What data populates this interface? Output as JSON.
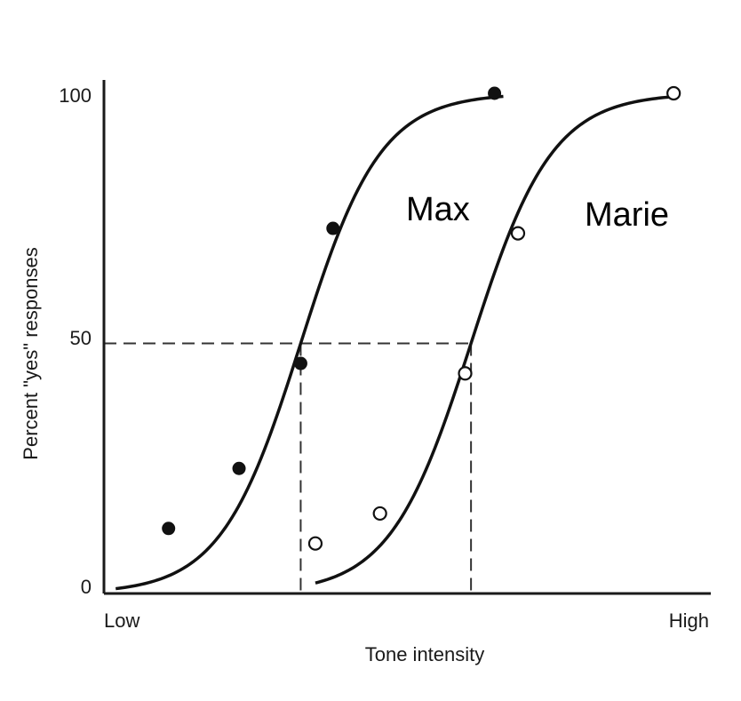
{
  "chart_data": {
    "type": "scatter",
    "xlabel": "Tone intensity",
    "ylabel": "Percent \"yes\" responses",
    "x_tick_labels": [
      "Low",
      "High"
    ],
    "y_ticks": [
      0,
      50,
      100
    ],
    "xlim": [
      0,
      100
    ],
    "ylim": [
      0,
      100
    ],
    "threshold_level": 50,
    "grid": false,
    "legend": "none",
    "series": [
      {
        "name": "Max",
        "marker": "filled-circle",
        "color": "#111111",
        "points": [
          {
            "x": 11,
            "y": 13
          },
          {
            "x": 23,
            "y": 25
          },
          {
            "x": 33.5,
            "y": 46
          },
          {
            "x": 39,
            "y": 73
          },
          {
            "x": 66.5,
            "y": 100
          }
        ],
        "curve": {
          "x0": 33.5,
          "k": 0.147,
          "x_range": [
            2,
            68
          ]
        },
        "threshold_x": 33.5
      },
      {
        "name": "Marie",
        "marker": "open-circle",
        "color": "#111111",
        "points": [
          {
            "x": 36,
            "y": 10
          },
          {
            "x": 47,
            "y": 16
          },
          {
            "x": 61.5,
            "y": 44
          },
          {
            "x": 70.5,
            "y": 72
          },
          {
            "x": 97,
            "y": 100
          }
        ],
        "curve": {
          "x0": 62.5,
          "k": 0.145,
          "x_range": [
            36,
            97
          ]
        },
        "threshold_x": 62.5
      }
    ]
  },
  "colors": {
    "ink": "#111111",
    "guide": "#333333",
    "background": "#ffffff"
  }
}
